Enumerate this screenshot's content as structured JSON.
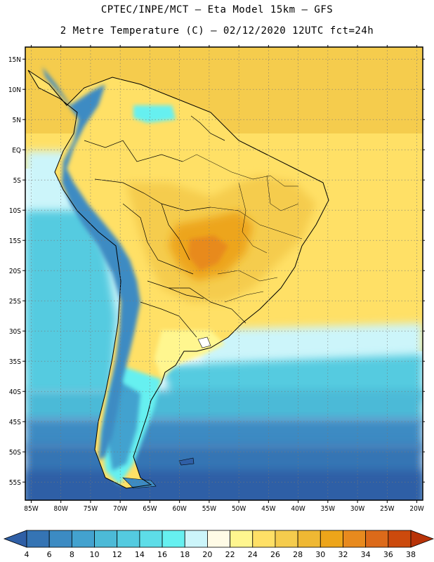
{
  "title_line1": "CPTEC/INPE/MCT –  Eta Model 15km – GFS",
  "title_line2": "2 Metre Temperature (C) – 02/12/2020 12UTC fct=24h",
  "map": {
    "lon_range": [
      -86,
      -19
    ],
    "lat_range": [
      -58,
      17
    ],
    "lon_ticks": [
      "85W",
      "80W",
      "75W",
      "70W",
      "65W",
      "60W",
      "55W",
      "50W",
      "45W",
      "40W",
      "35W",
      "30W",
      "25W",
      "20W"
    ],
    "lat_ticks": [
      "15N",
      "10N",
      "5N",
      "EQ",
      "5S",
      "10S",
      "15S",
      "20S",
      "25S",
      "30S",
      "35S",
      "40S",
      "45S",
      "50S",
      "55S"
    ]
  },
  "colorbar": {
    "labels": [
      "4",
      "6",
      "8",
      "10",
      "12",
      "14",
      "16",
      "18",
      "20",
      "22",
      "24",
      "26",
      "28",
      "30",
      "32",
      "34",
      "36",
      "38"
    ],
    "colors": [
      "#2f5fa6",
      "#3574b4",
      "#3c8bc3",
      "#43a2cf",
      "#4cbad7",
      "#54cbe0",
      "#5ddde8",
      "#66f0f0",
      "#ccf5fa",
      "#fffbe6",
      "#fff68f",
      "#ffe066",
      "#f5cc4d",
      "#efb833",
      "#eda51a",
      "#e88a1e",
      "#dc6a1a",
      "#cc4a0d",
      "#b83308"
    ]
  }
}
